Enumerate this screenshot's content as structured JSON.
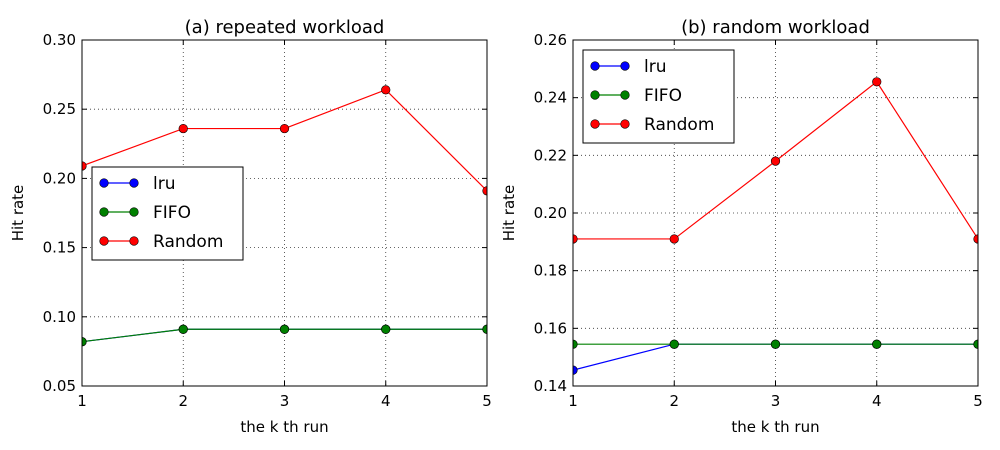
{
  "chart_data": [
    {
      "type": "line",
      "title": "(a) repeated workload",
      "xlabel": "the k th run",
      "ylabel": "Hit rate",
      "x": [
        1,
        2,
        3,
        4,
        5
      ],
      "xticks": [
        "1",
        "2",
        "3",
        "4",
        "5"
      ],
      "yticks": [
        "0.05",
        "0.10",
        "0.15",
        "0.20",
        "0.25",
        "0.30"
      ],
      "xlim": [
        1,
        5
      ],
      "ylim": [
        0.05,
        0.3
      ],
      "grid": true,
      "legend_position": "center-left",
      "series": [
        {
          "name": "lru",
          "color": "#0000ff",
          "values": [
            0.082,
            0.091,
            0.091,
            0.091,
            0.091
          ]
        },
        {
          "name": "FIFO",
          "color": "#008000",
          "values": [
            0.082,
            0.091,
            0.091,
            0.091,
            0.091
          ]
        },
        {
          "name": "Random",
          "color": "#ff0000",
          "values": [
            0.209,
            0.236,
            0.236,
            0.264,
            0.191
          ]
        }
      ]
    },
    {
      "type": "line",
      "title": "(b) random workload",
      "xlabel": "the k th run",
      "ylabel": "Hit rate",
      "x": [
        1,
        2,
        3,
        4,
        5
      ],
      "xticks": [
        "1",
        "2",
        "3",
        "4",
        "5"
      ],
      "yticks": [
        "0.14",
        "0.16",
        "0.18",
        "0.20",
        "0.22",
        "0.24",
        "0.26"
      ],
      "xlim": [
        1,
        5
      ],
      "ylim": [
        0.14,
        0.26
      ],
      "grid": true,
      "legend_position": "upper-left",
      "series": [
        {
          "name": "lru",
          "color": "#0000ff",
          "values": [
            0.1455,
            0.1545,
            0.1545,
            0.1545,
            0.1545
          ]
        },
        {
          "name": "FIFO",
          "color": "#008000",
          "values": [
            0.1545,
            0.1545,
            0.1545,
            0.1545,
            0.1545
          ]
        },
        {
          "name": "Random",
          "color": "#ff0000",
          "values": [
            0.191,
            0.191,
            0.218,
            0.2455,
            0.191
          ]
        }
      ]
    }
  ]
}
